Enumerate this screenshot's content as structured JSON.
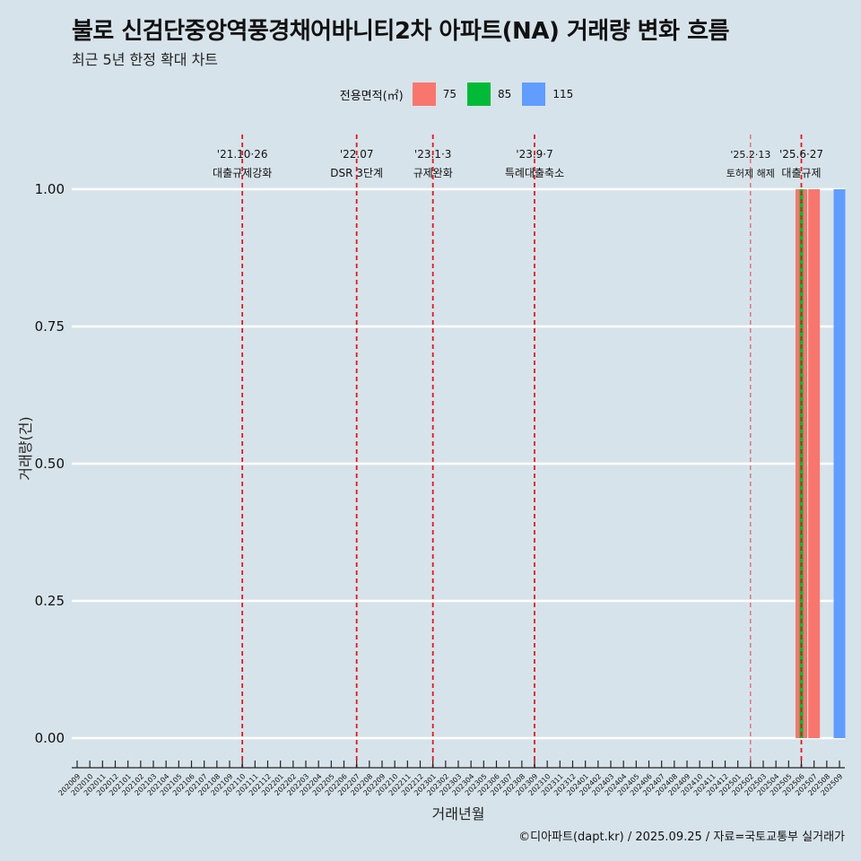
{
  "header": {
    "title": "불로 신검단중앙역풍경채어바니티2차 아파트(NA) 거래량 변화 흐름",
    "subtitle": "최근 5년 한정 확대 차트"
  },
  "caption": "©디아파트(dapt.kr) / 2025.09.25 / 자료=국토교통부 실거래가",
  "chart_data": {
    "type": "bar",
    "title": "불로 신검단중앙역풍경채어바니티2차 아파트(NA) 거래량 변화 흐름",
    "xlabel": "거래년월",
    "ylabel": "거래량(건)",
    "ylim": [
      0,
      1
    ],
    "yticks": [
      "0.00",
      "0.25",
      "0.50",
      "0.75",
      "1.00"
    ],
    "legend": {
      "title": "전용면적(㎡)",
      "position": "top",
      "entries": [
        {
          "label": "75",
          "color": "#f8766d"
        },
        {
          "label": "85",
          "color": "#00ba38"
        },
        {
          "label": "115",
          "color": "#619cff"
        }
      ]
    },
    "categories": [
      "202009",
      "202010",
      "202011",
      "202012",
      "202101",
      "202102",
      "202103",
      "202104",
      "202105",
      "202106",
      "202107",
      "202108",
      "202109",
      "202110",
      "202111",
      "202112",
      "202201",
      "202202",
      "202203",
      "202204",
      "202205",
      "202206",
      "202207",
      "202208",
      "202209",
      "202210",
      "202211",
      "202212",
      "202301",
      "202302",
      "202303",
      "202304",
      "202305",
      "202306",
      "202307",
      "202308",
      "202309",
      "202310",
      "202311",
      "202312",
      "202401",
      "202402",
      "202403",
      "202404",
      "202405",
      "202406",
      "202407",
      "202408",
      "202409",
      "202410",
      "202411",
      "202412",
      "202501",
      "202502",
      "202503",
      "202504",
      "202505",
      "202506",
      "202507",
      "202508",
      "202509"
    ],
    "series": [
      {
        "name": "75",
        "points": [
          {
            "x": "202506",
            "y": 1
          },
          {
            "x": "202507",
            "y": 1
          }
        ]
      },
      {
        "name": "85",
        "points": [
          {
            "x": "202506",
            "y": 1
          }
        ]
      },
      {
        "name": "115",
        "points": [
          {
            "x": "202509",
            "y": 1
          }
        ]
      }
    ],
    "annotations": [
      {
        "x": "202110",
        "date": "'21.10·26",
        "label": "대출규제강화",
        "style": "bold"
      },
      {
        "x": "202207",
        "date": "'22.07",
        "label": "DSR 3단계",
        "style": "bold"
      },
      {
        "x": "202301",
        "date": "'23.1·3",
        "label": "규제완화",
        "style": "bold"
      },
      {
        "x": "202309",
        "date": "'23.9·7",
        "label": "특례대출축소",
        "style": "bold"
      },
      {
        "x": "202502",
        "date": "'25.2·13",
        "label": "토허제 해제",
        "style": "thin"
      },
      {
        "x": "202506",
        "date": "'25.6·27",
        "label": "대출규제",
        "style": "bold"
      }
    ]
  }
}
